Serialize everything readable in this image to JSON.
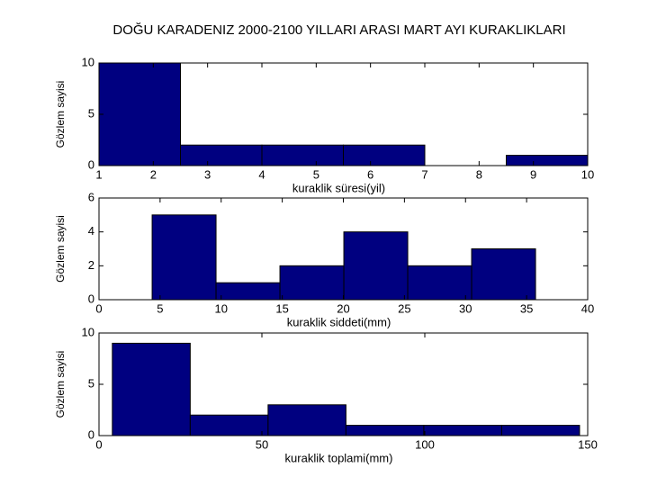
{
  "chart_data": [
    {
      "type": "histogram",
      "title": "DOĞU KARADENIZ 2000-2100 YILLARI ARASI MART AYI KURAKLIKLARI",
      "bins": [
        1,
        2.5,
        4,
        5.5,
        7,
        8.5,
        10
      ],
      "counts": [
        10,
        2,
        2,
        2,
        0,
        1
      ],
      "color": "#000080",
      "xlim": [
        1,
        10
      ],
      "xticks": [
        1,
        2,
        3,
        4,
        5,
        6,
        7,
        8,
        9,
        10
      ],
      "ylim": [
        0,
        10
      ],
      "yticks": [
        0,
        5,
        10
      ],
      "xlabel": "kuraklik süresi(yil)",
      "ylabel": "Gözlem sayisi"
    },
    {
      "type": "histogram",
      "bins": [
        4.35,
        9.58,
        14.81,
        20.04,
        25.27,
        30.5,
        35.73
      ],
      "counts": [
        5,
        1,
        2,
        4,
        2,
        3
      ],
      "color": "#000080",
      "xlim": [
        0,
        40
      ],
      "xticks": [
        0,
        5,
        10,
        15,
        20,
        25,
        30,
        35,
        40
      ],
      "ylim": [
        0,
        6
      ],
      "yticks": [
        0,
        2,
        4,
        6
      ],
      "xlabel": "kuraklik siddeti(mm)",
      "ylabel": "Gözlem sayisi"
    },
    {
      "type": "histogram",
      "bins": [
        4.1,
        28,
        51.9,
        75.8,
        99.7,
        123.6,
        147.5
      ],
      "counts": [
        9,
        2,
        3,
        1,
        1,
        1
      ],
      "color": "#000080",
      "xlim": [
        0,
        150
      ],
      "xticks": [
        0,
        50,
        100,
        150
      ],
      "ylim": [
        0,
        10
      ],
      "yticks": [
        0,
        5,
        10
      ],
      "xlabel": "kuraklik toplami(mm)",
      "ylabel": "Gözlem sayisi"
    }
  ]
}
